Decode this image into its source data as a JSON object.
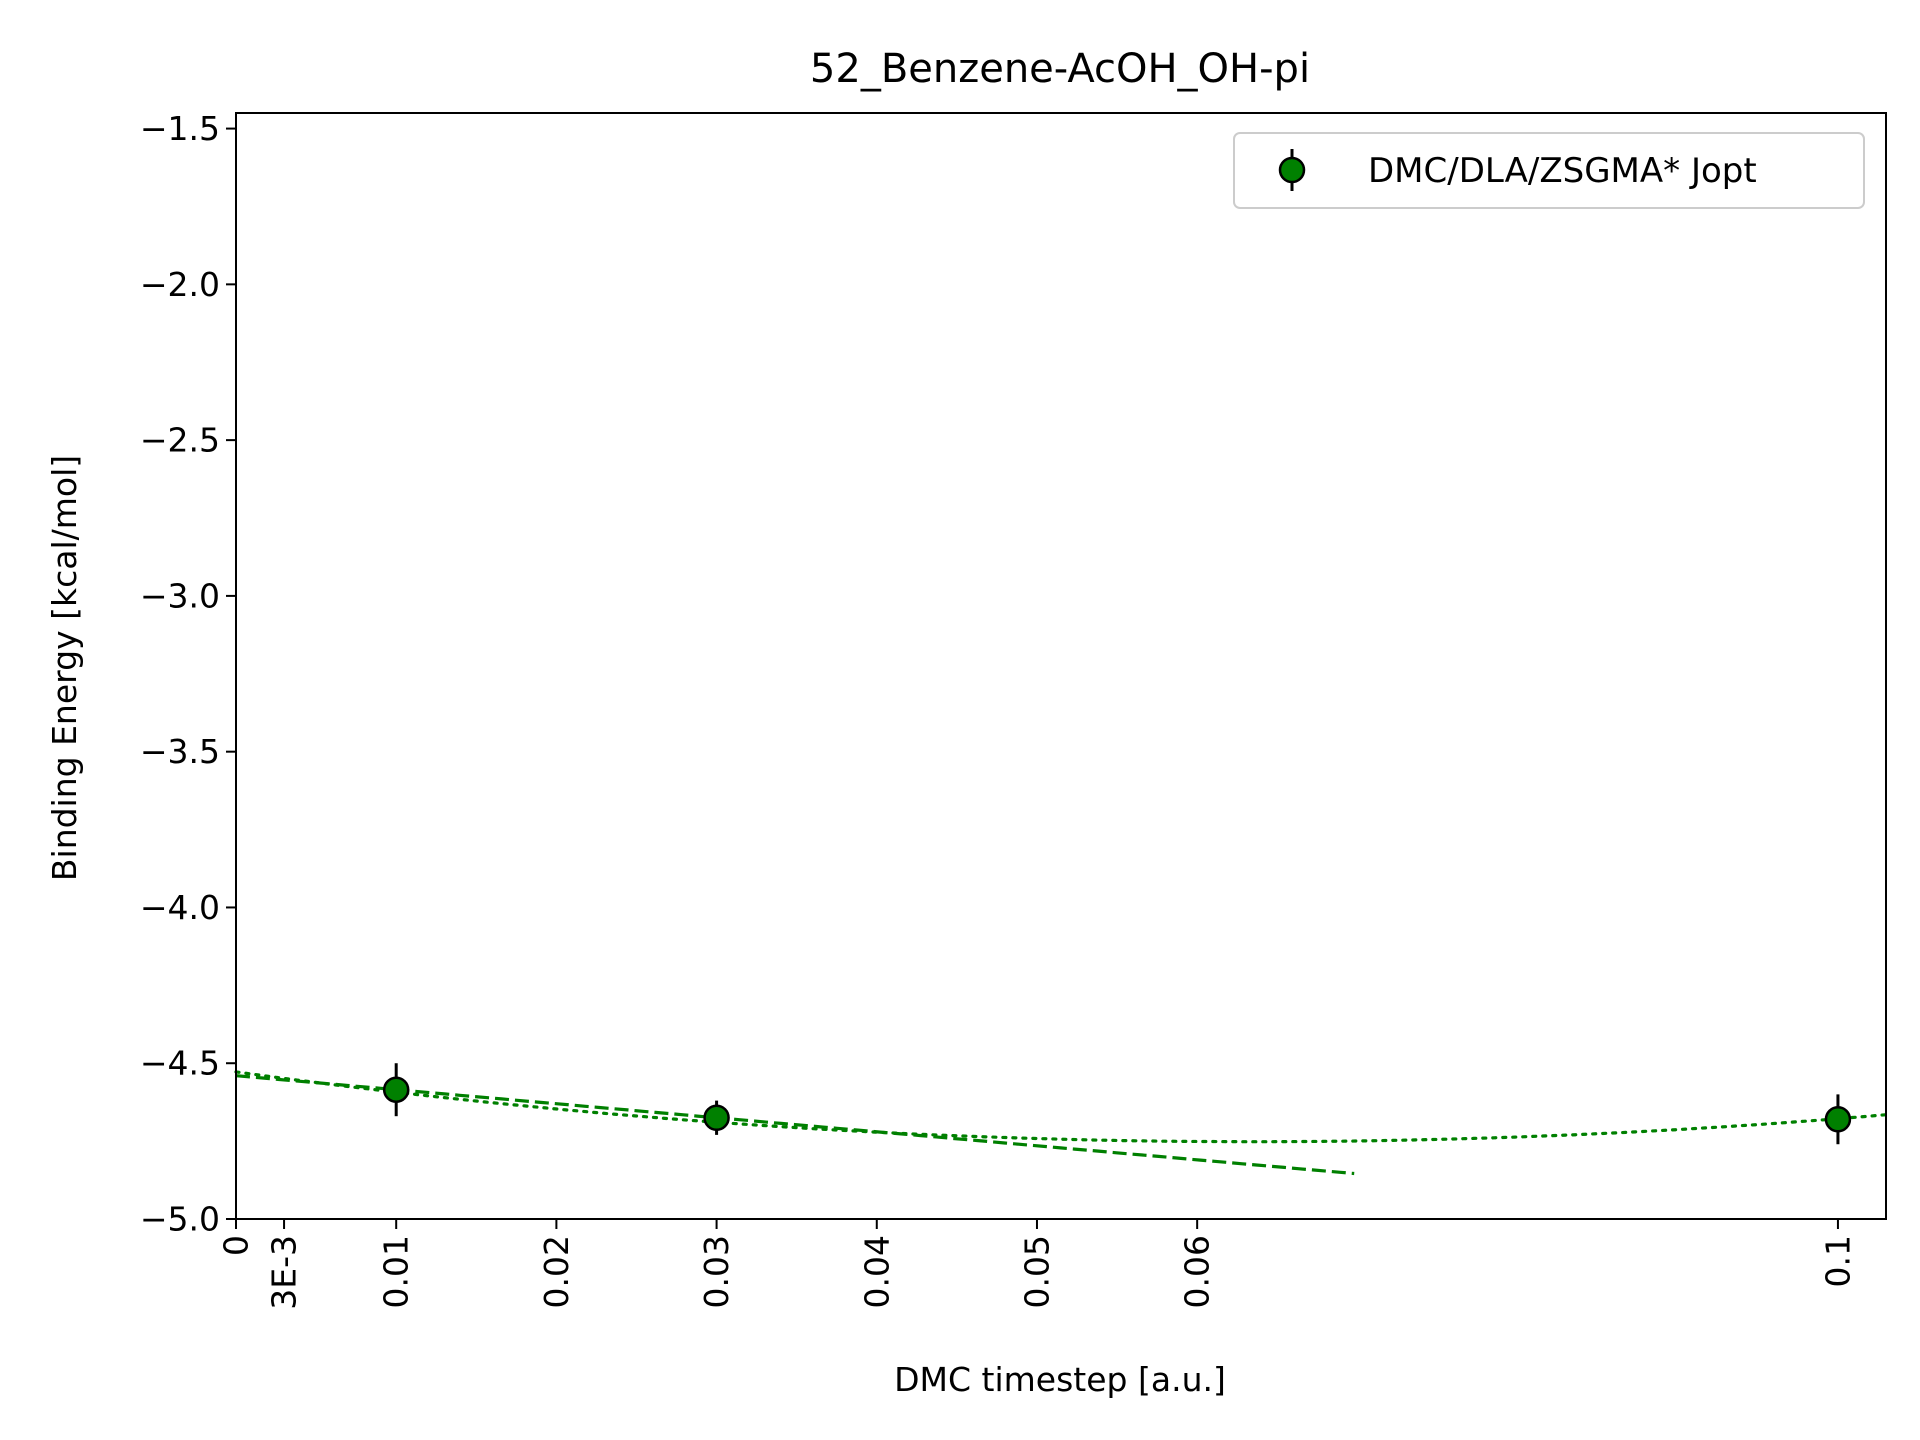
{
  "chart_data": {
    "type": "scatter",
    "title": "52_Benzene-AcOH_OH-pi",
    "xlabel": "DMC timestep [a.u.]",
    "ylabel": "Binding Energy [kcal/mol]",
    "xlim": [
      0,
      0.103
    ],
    "ylim": [
      -5.0,
      -1.45
    ],
    "x_ticks": [
      {
        "value": 0,
        "label": "0"
      },
      {
        "value": 0.003,
        "label": "3E-3"
      },
      {
        "value": 0.01,
        "label": "0.01"
      },
      {
        "value": 0.02,
        "label": "0.02"
      },
      {
        "value": 0.03,
        "label": "0.03"
      },
      {
        "value": 0.04,
        "label": "0.04"
      },
      {
        "value": 0.05,
        "label": "0.05"
      },
      {
        "value": 0.06,
        "label": "0.06"
      },
      {
        "value": 0.1,
        "label": "0.1"
      }
    ],
    "y_ticks": [
      {
        "value": -1.5,
        "label": "−1.5"
      },
      {
        "value": -2.0,
        "label": "−2.0"
      },
      {
        "value": -2.5,
        "label": "−2.5"
      },
      {
        "value": -3.0,
        "label": "−3.0"
      },
      {
        "value": -3.5,
        "label": "−3.5"
      },
      {
        "value": -4.0,
        "label": "−4.0"
      },
      {
        "value": -4.5,
        "label": "−4.5"
      },
      {
        "value": -5.0,
        "label": "−5.0"
      }
    ],
    "grid": false,
    "legend_position": "top-right",
    "series": [
      {
        "name": "DMC/DLA/ZSGMA* Jopt",
        "color": "#008000",
        "marker": "circle",
        "points": [
          {
            "x": 0.01,
            "y": -4.585,
            "err": 0.085
          },
          {
            "x": 0.03,
            "y": -4.675,
            "err": 0.055
          },
          {
            "x": 0.1,
            "y": -4.68,
            "err": 0.08
          }
        ]
      }
    ],
    "fits": [
      {
        "style": "dashed",
        "color": "#008000",
        "x_range": [
          0,
          0.0698
        ],
        "intercept": -4.54,
        "slope": -4.5,
        "quad": 0
      },
      {
        "style": "dotted",
        "color": "#008000",
        "x_range": [
          0,
          0.103
        ],
        "intercept": -4.528,
        "slope": -7.05,
        "quad": 55.5
      }
    ]
  }
}
